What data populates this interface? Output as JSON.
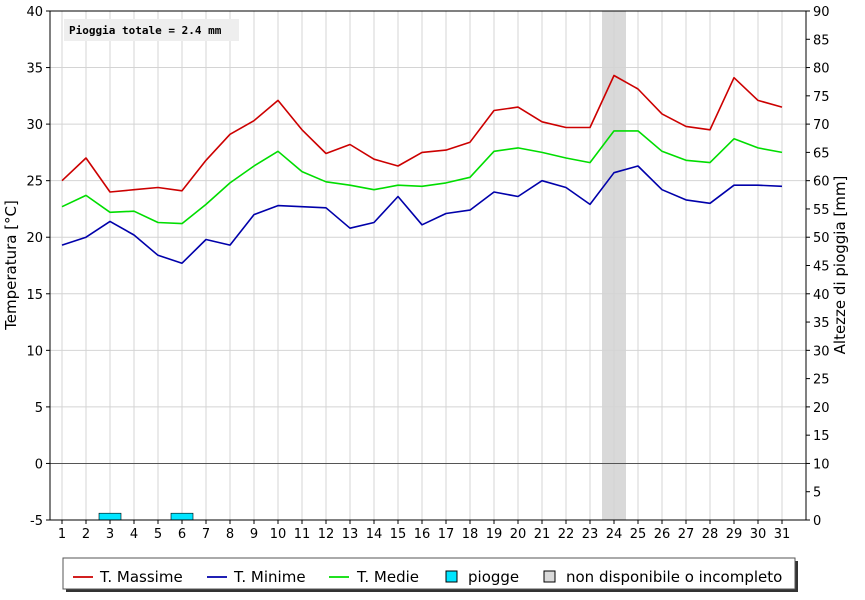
{
  "chart_data": {
    "type": "line",
    "annotation": "Pioggia totale = 2.4 mm",
    "ylabel": "Temperatura [°C]",
    "y2label": "Altezze di pioggia [mm]",
    "ylim": [
      -5,
      40
    ],
    "y2lim": [
      0,
      90
    ],
    "yticks": [
      -5,
      0,
      5,
      10,
      15,
      20,
      25,
      30,
      35,
      40
    ],
    "y2ticks": [
      0,
      5,
      10,
      15,
      20,
      25,
      30,
      35,
      40,
      45,
      50,
      55,
      60,
      65,
      70,
      75,
      80,
      85,
      90
    ],
    "categories": [
      "1",
      "2",
      "3",
      "4",
      "5",
      "6",
      "7",
      "8",
      "9",
      "10",
      "11",
      "12",
      "13",
      "14",
      "15",
      "16",
      "17",
      "18",
      "19",
      "20",
      "21",
      "22",
      "23",
      "24",
      "25",
      "26",
      "27",
      "28",
      "29",
      "30",
      "31"
    ],
    "grid": true,
    "legend_position": "bottom",
    "series": [
      {
        "name": "T. Massime",
        "color": "#cc0000",
        "values": [
          25.0,
          27.0,
          24.0,
          24.2,
          24.4,
          24.1,
          26.8,
          29.1,
          30.3,
          32.1,
          29.5,
          27.4,
          28.2,
          26.9,
          26.3,
          27.5,
          27.7,
          28.4,
          31.2,
          31.5,
          30.2,
          29.7,
          29.7,
          34.3,
          33.1,
          30.9,
          29.8,
          29.5,
          34.1,
          32.1,
          31.5
        ]
      },
      {
        "name": "T. Minime",
        "color": "#0000aa",
        "values": [
          19.3,
          20.0,
          21.4,
          20.2,
          18.4,
          17.7,
          19.8,
          19.3,
          22.0,
          22.8,
          22.7,
          22.6,
          20.8,
          21.3,
          23.6,
          21.1,
          22.1,
          22.4,
          24.0,
          23.6,
          25.0,
          24.4,
          22.9,
          25.7,
          26.3,
          24.2,
          23.3,
          23.0,
          24.6,
          24.6,
          24.5
        ]
      },
      {
        "name": "T. Medie",
        "color": "#00dd00",
        "values": [
          22.7,
          23.7,
          22.2,
          22.3,
          21.3,
          21.2,
          22.9,
          24.8,
          26.3,
          27.6,
          25.8,
          24.9,
          24.6,
          24.2,
          24.6,
          24.5,
          24.8,
          25.3,
          27.6,
          27.9,
          27.5,
          27.0,
          26.6,
          29.4,
          29.4,
          27.6,
          26.8,
          26.6,
          28.7,
          27.9,
          27.5
        ]
      }
    ],
    "rain": {
      "name": "piogge",
      "color": "#00e5ff",
      "days": [
        "3",
        "6"
      ],
      "values": [
        1.2,
        1.2
      ]
    },
    "unavailable": {
      "name": "non disponibile o incompleto",
      "color": "#d9d9d9",
      "days": [
        "24"
      ]
    },
    "legend": [
      "T. Massime",
      "T. Minime",
      "T. Medie",
      "piogge",
      "non disponibile o incompleto"
    ]
  }
}
